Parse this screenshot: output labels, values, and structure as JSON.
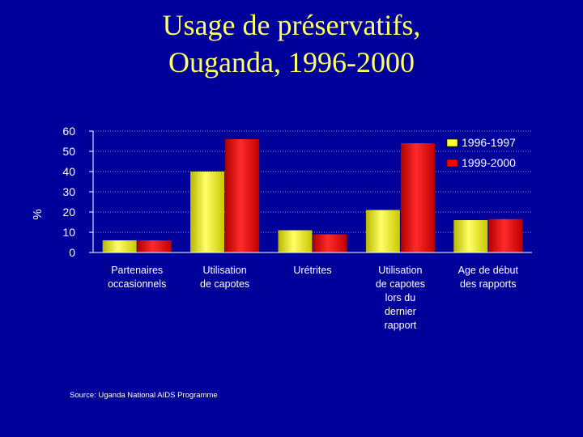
{
  "title_lines": [
    "Usage de préservatifs,",
    "Ouganda, 1996-2000"
  ],
  "source": "Source:  Uganda National AIDS Programme",
  "colors": {
    "background": "#00009A",
    "title": "#FFFF66",
    "series_1996": "#FFFF33",
    "series_1999": "#FF0000",
    "axis_text": "#FFFFFF"
  },
  "chart_data": {
    "type": "bar",
    "title": "Usage de préservatifs, Ouganda, 1996-2000",
    "ylabel": "%",
    "xlabel": "",
    "ylim": [
      0,
      60
    ],
    "yticks": [
      0,
      10,
      20,
      30,
      40,
      50,
      60
    ],
    "grid": true,
    "legend_position": "top-right",
    "categories": [
      [
        "Partenaires",
        "occasionnels"
      ],
      [
        "Utilisation",
        "de capotes"
      ],
      [
        "Urétrites"
      ],
      [
        "Utilisation",
        "de capotes",
        "lors du",
        "dernier",
        "rapport"
      ],
      [
        "Age de début",
        "des rapports"
      ]
    ],
    "series": [
      {
        "name": "1996-1997",
        "color": "#FFFF33",
        "values": [
          6,
          40,
          11,
          21,
          16
        ]
      },
      {
        "name": "1999-2000",
        "color": "#FF0000",
        "values": [
          6,
          56,
          9,
          54,
          16.5
        ]
      }
    ]
  }
}
